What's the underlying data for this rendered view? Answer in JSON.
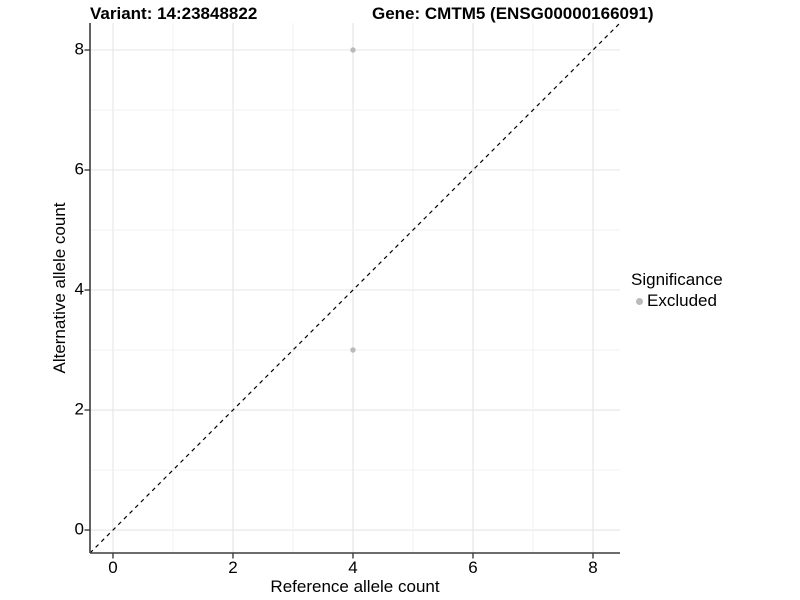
{
  "chart_data": {
    "type": "scatter",
    "title_left": "Variant: 14:23848822",
    "title_right": "Gene: CMTM5 (ENSG00000166091)",
    "xlabel": "Reference allele count",
    "ylabel": "Alternative allele count",
    "xlim": [
      -0.383,
      8.45
    ],
    "ylim": [
      -0.383,
      8.45
    ],
    "x_ticks": [
      0,
      2,
      4,
      6,
      8
    ],
    "y_ticks": [
      0,
      2,
      4,
      6,
      8
    ],
    "grid": {
      "on": true,
      "spacing": 1,
      "major_every": 2,
      "major_color": "#e4e4e4",
      "minor_color": "#f1f1f1"
    },
    "reference_line": {
      "equation": "y = x",
      "style": "dashed",
      "color": "#000000"
    },
    "series": [
      {
        "name": "Excluded",
        "color": "#bababa",
        "points": [
          {
            "x": 4,
            "y": 8
          },
          {
            "x": 4,
            "y": 3
          }
        ]
      }
    ],
    "legend": {
      "title": "Significance",
      "position": "right",
      "entries": [
        {
          "label": "Excluded",
          "color": "#bababa"
        }
      ]
    },
    "colors": {
      "axis_line": "#3c3c3c",
      "tick_mark": "#3c3c3c",
      "text": "#000000",
      "panel_background": "#ffffff"
    }
  }
}
